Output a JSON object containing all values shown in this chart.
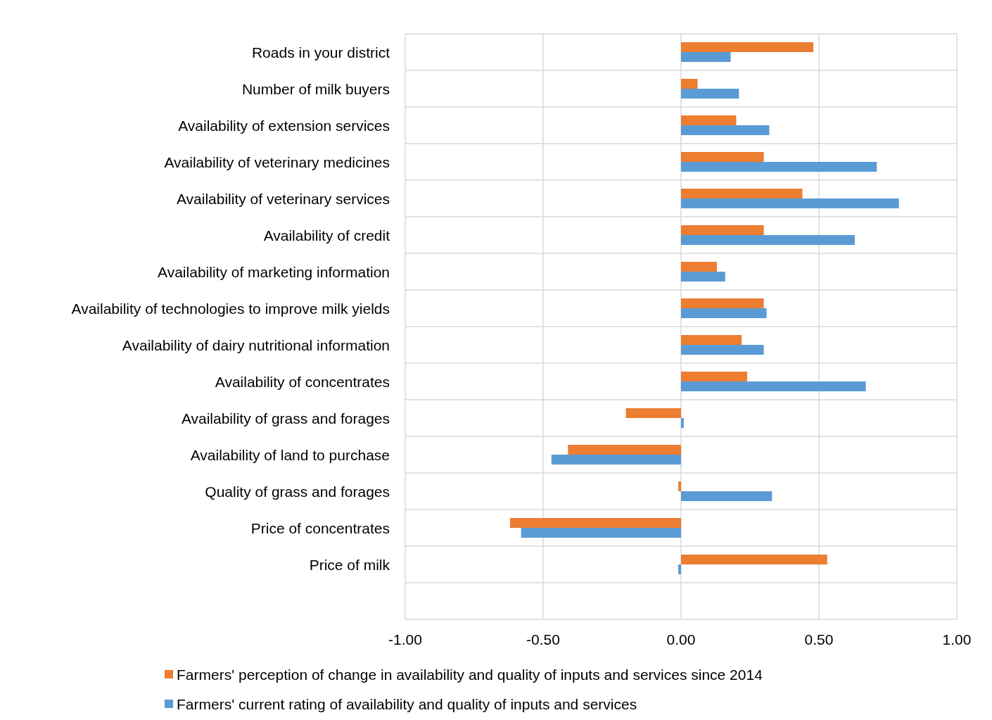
{
  "chart_data": {
    "type": "bar",
    "orientation": "horizontal",
    "categories": [
      "Roads in your district",
      "Number of milk buyers",
      "Availability of extension services",
      "Availability of veterinary medicines",
      "Availability of veterinary services",
      "Availability of credit",
      "Availability of marketing information",
      "Availability of technologies to improve milk yields",
      "Availability of dairy nutritional information",
      "Availability of concentrates",
      "Availability of grass and forages",
      "Availability of land to purchase",
      "Quality of grass and forages",
      "Price of concentrates",
      "Price of milk",
      null
    ],
    "series": [
      {
        "name": "Farmers' perception of change in availability and quality of inputs and services since 2014",
        "color": "#ed7d31",
        "values": [
          0.48,
          0.06,
          0.2,
          0.3,
          0.44,
          0.3,
          0.13,
          0.3,
          0.22,
          0.24,
          -0.2,
          -0.41,
          -0.01,
          -0.62,
          0.53,
          null
        ]
      },
      {
        "name": "Farmers' current rating of availability and quality of inputs and services",
        "color": "#5b9bd5",
        "values": [
          0.18,
          0.21,
          0.32,
          0.71,
          0.79,
          0.63,
          0.16,
          0.31,
          0.3,
          0.67,
          0.01,
          -0.47,
          0.33,
          -0.58,
          -0.01,
          null
        ]
      }
    ],
    "xlim": [
      -1,
      1
    ],
    "xticks": [
      {
        "value": -1,
        "label": "-1.00"
      },
      {
        "value": -0.5,
        "label": "-0.50"
      },
      {
        "value": 0,
        "label": "0.00"
      },
      {
        "value": 0.5,
        "label": "0.50"
      },
      {
        "value": 1,
        "label": "1.00"
      }
    ],
    "grid": true,
    "legend": "bottom"
  }
}
